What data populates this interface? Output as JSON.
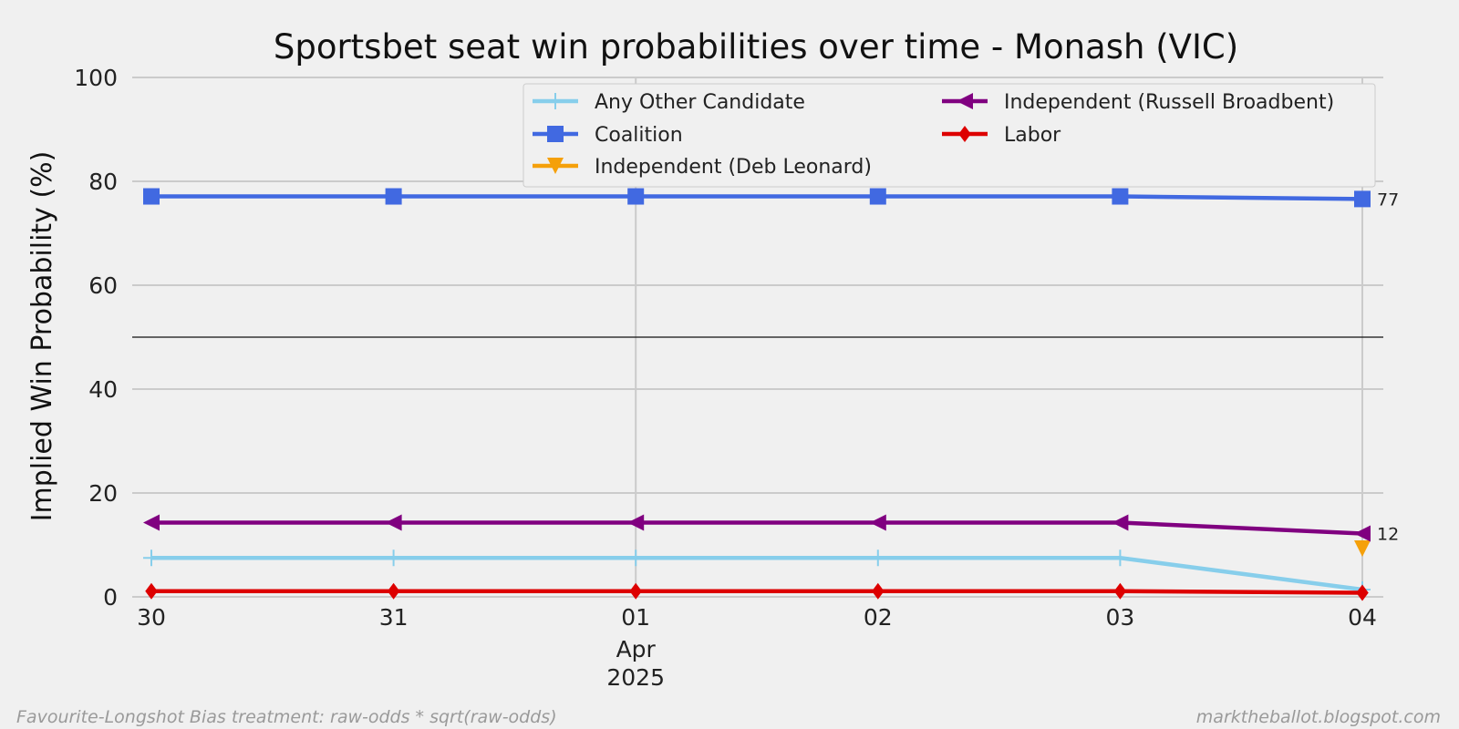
{
  "chart_data": {
    "type": "line",
    "title": "Sportsbet seat win probabilities over time - Monash (VIC)",
    "xlabel": "",
    "ylabel": "Implied Win Probability (%)",
    "x": [
      "2025-03-30",
      "2025-03-31",
      "2025-04-01",
      "2025-04-02",
      "2025-04-03",
      "2025-04-04"
    ],
    "x_tick_labels": [
      "30",
      "31",
      "01",
      "02",
      "03",
      "04"
    ],
    "x_sublabel": [
      "Apr",
      "2025"
    ],
    "ylim": [
      0,
      100
    ],
    "y_ticks": [
      "0",
      "20",
      "40",
      "60",
      "80",
      "100"
    ],
    "reference_line": 50,
    "grid": true,
    "legend_position": "top-right",
    "series": [
      {
        "name": "Any Other Candidate",
        "color": "#87ceeb",
        "marker": "plus",
        "values": [
          7.5,
          7.5,
          7.5,
          7.5,
          7.5,
          1.4
        ]
      },
      {
        "name": "Coalition",
        "color": "#4169e1",
        "marker": "square",
        "values": [
          77.1,
          77.1,
          77.1,
          77.1,
          77.1,
          76.6
        ],
        "end_label": "77"
      },
      {
        "name": "Independent (Deb Leonard)",
        "color": "#f5a00a",
        "marker": "triangle-down",
        "values": [
          null,
          null,
          null,
          null,
          null,
          9.3
        ]
      },
      {
        "name": "Independent (Russell Broadbent)",
        "color": "#800080",
        "marker": "triangle-left",
        "values": [
          14.3,
          14.3,
          14.3,
          14.3,
          14.3,
          12.2
        ],
        "end_label": "12"
      },
      {
        "name": "Labor",
        "color": "#dd0000",
        "marker": "diamond",
        "values": [
          1.1,
          1.1,
          1.1,
          1.1,
          1.1,
          0.8
        ]
      }
    ]
  },
  "footer": {
    "left": "Favourite-Longshot Bias treatment: raw-odds * sqrt(raw-odds)",
    "right": "marktheballot.blogspot.com"
  }
}
